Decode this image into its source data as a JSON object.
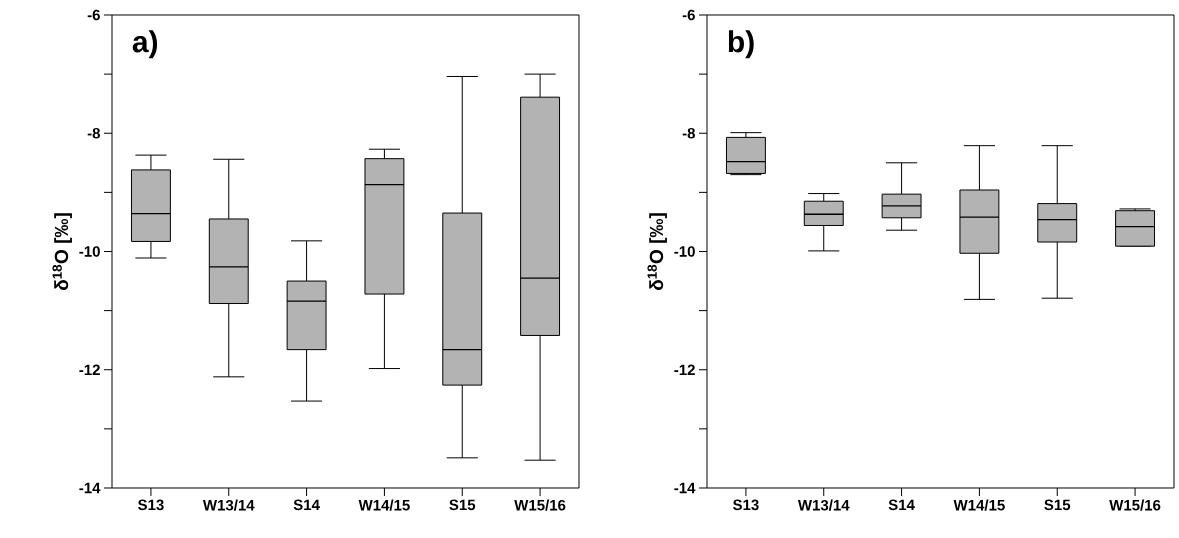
{
  "chart_data": [
    {
      "type": "box",
      "title": "a)",
      "ylabel": "δ$^{18}$O [‰]",
      "categories": [
        "S13",
        "W13/14",
        "S14",
        "W14/15",
        "S15",
        "W15/16"
      ],
      "color": "#b3b3b3",
      "ylim": [
        -14,
        -6
      ],
      "yticks": [
        -14,
        {
          "value": -13,
          "label": null
        },
        -12,
        {
          "value": -11,
          "label": null
        },
        -10,
        {
          "value": -9,
          "label": null
        },
        -8,
        {
          "value": -7,
          "label": null
        },
        -6
      ],
      "boxes": [
        {
          "low": -10.11,
          "q1": -9.83,
          "median": -9.36,
          "q3": -8.62,
          "high": -8.37
        },
        {
          "low": -12.12,
          "q1": -10.88,
          "median": -10.26,
          "q3": -9.45,
          "high": -8.44
        },
        {
          "low": -12.53,
          "q1": -11.66,
          "median": -10.84,
          "q3": -10.5,
          "high": -9.82
        },
        {
          "low": -11.98,
          "q1": -10.72,
          "median": -8.87,
          "q3": -8.43,
          "high": -8.27
        },
        {
          "low": -13.49,
          "q1": -12.26,
          "median": -11.66,
          "q3": -9.35,
          "high": -7.04
        },
        {
          "low": -13.53,
          "q1": -11.42,
          "median": -10.45,
          "q3": -7.39,
          "high": -7.0
        }
      ]
    },
    {
      "type": "box",
      "title": "b)",
      "ylabel": "δ$^{18}$O [‰]",
      "categories": [
        "S13",
        "W13/14",
        "S14",
        "W14/15",
        "S15",
        "W15/16"
      ],
      "color": "#b3b3b3",
      "ylim": [
        -14,
        -6
      ],
      "yticks": [
        -14,
        {
          "value": -13,
          "label": null
        },
        -12,
        {
          "value": -11,
          "label": null
        },
        -10,
        {
          "value": -9,
          "label": null
        },
        -8,
        {
          "value": -7,
          "label": null
        },
        -6
      ],
      "boxes": [
        {
          "low": -8.7,
          "q1": -8.68,
          "median": -8.48,
          "q3": -8.07,
          "high": -7.99
        },
        {
          "low": -9.99,
          "q1": -9.56,
          "median": -9.37,
          "q3": -9.15,
          "high": -9.02
        },
        {
          "low": -9.64,
          "q1": -9.43,
          "median": -9.23,
          "q3": -9.03,
          "high": -8.5
        },
        {
          "low": -10.81,
          "q1": -10.03,
          "median": -9.42,
          "q3": -8.96,
          "high": -8.21
        },
        {
          "low": -10.79,
          "q1": -9.84,
          "median": -9.46,
          "q3": -9.19,
          "high": -8.21
        },
        {
          "low": -9.91,
          "q1": -9.91,
          "median": -9.58,
          "q3": -9.31,
          "high": -9.28
        }
      ]
    }
  ]
}
